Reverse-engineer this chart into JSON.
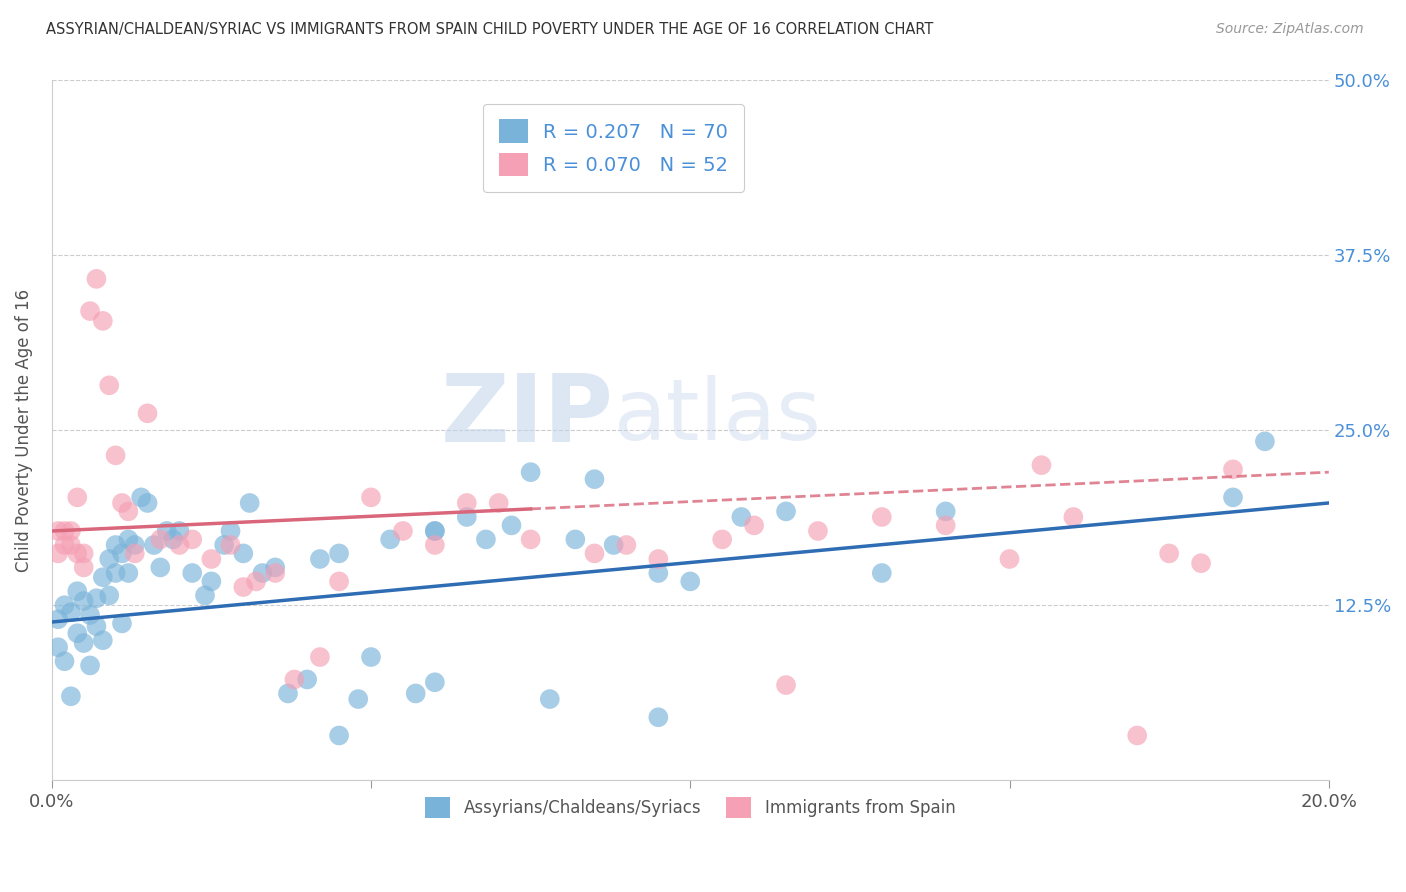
{
  "title": "ASSYRIAN/CHALDEAN/SYRIAC VS IMMIGRANTS FROM SPAIN CHILD POVERTY UNDER THE AGE OF 16 CORRELATION CHART",
  "source": "Source: ZipAtlas.com",
  "ylabel": "Child Poverty Under the Age of 16",
  "xmin": 0.0,
  "xmax": 0.2,
  "ymin": 0.0,
  "ymax": 0.5,
  "xticks": [
    0.0,
    0.05,
    0.1,
    0.15,
    0.2
  ],
  "xticklabels": [
    "0.0%",
    "",
    "",
    "",
    "20.0%"
  ],
  "yticks": [
    0.0,
    0.125,
    0.25,
    0.375,
    0.5
  ],
  "yticklabels": [
    "",
    "12.5%",
    "25.0%",
    "37.5%",
    "50.0%"
  ],
  "grid_color": "#cccccc",
  "background_color": "#ffffff",
  "blue_color": "#7ab3d9",
  "blue_line_color": "#2e6db4",
  "pink_color": "#f5a0b5",
  "pink_line_color": "#d9667a",
  "watermark_zip_color": "#c5d9ee",
  "watermark_atlas_color": "#b8cfe8",
  "legend_label1": "R = 0.207   N = 70",
  "legend_label2": "R = 0.070   N = 52",
  "bottom_label1": "Assyrians/Chaldeans/Syriacs",
  "bottom_label2": "Immigrants from Spain",
  "blue_line_x0": 0.0,
  "blue_line_y0": 0.113,
  "blue_line_x1": 0.2,
  "blue_line_y1": 0.198,
  "pink_line_x0": 0.0,
  "pink_line_y0": 0.178,
  "pink_line_x1": 0.2,
  "pink_line_y1": 0.22,
  "blue_scatter_x": [
    0.001,
    0.001,
    0.002,
    0.002,
    0.003,
    0.003,
    0.004,
    0.004,
    0.005,
    0.005,
    0.006,
    0.006,
    0.007,
    0.007,
    0.008,
    0.008,
    0.009,
    0.009,
    0.01,
    0.01,
    0.011,
    0.011,
    0.012,
    0.012,
    0.013,
    0.014,
    0.015,
    0.016,
    0.017,
    0.018,
    0.019,
    0.02,
    0.022,
    0.024,
    0.025,
    0.027,
    0.028,
    0.03,
    0.031,
    0.033,
    0.035,
    0.037,
    0.04,
    0.042,
    0.045,
    0.048,
    0.05,
    0.053,
    0.057,
    0.06,
    0.065,
    0.068,
    0.072,
    0.078,
    0.082,
    0.088,
    0.095,
    0.1,
    0.108,
    0.115,
    0.085,
    0.075,
    0.095,
    0.06,
    0.045,
    0.13,
    0.14,
    0.185,
    0.19,
    0.06
  ],
  "blue_scatter_y": [
    0.115,
    0.095,
    0.125,
    0.085,
    0.12,
    0.06,
    0.135,
    0.105,
    0.128,
    0.098,
    0.118,
    0.082,
    0.11,
    0.13,
    0.145,
    0.1,
    0.158,
    0.132,
    0.168,
    0.148,
    0.112,
    0.162,
    0.172,
    0.148,
    0.168,
    0.202,
    0.198,
    0.168,
    0.152,
    0.178,
    0.172,
    0.178,
    0.148,
    0.132,
    0.142,
    0.168,
    0.178,
    0.162,
    0.198,
    0.148,
    0.152,
    0.062,
    0.072,
    0.158,
    0.162,
    0.058,
    0.088,
    0.172,
    0.062,
    0.178,
    0.188,
    0.172,
    0.182,
    0.058,
    0.172,
    0.168,
    0.045,
    0.142,
    0.188,
    0.192,
    0.215,
    0.22,
    0.148,
    0.178,
    0.032,
    0.148,
    0.192,
    0.202,
    0.242,
    0.07
  ],
  "pink_scatter_x": [
    0.001,
    0.001,
    0.002,
    0.002,
    0.003,
    0.003,
    0.004,
    0.004,
    0.005,
    0.005,
    0.006,
    0.007,
    0.008,
    0.009,
    0.01,
    0.011,
    0.012,
    0.013,
    0.015,
    0.017,
    0.02,
    0.022,
    0.025,
    0.028,
    0.03,
    0.032,
    0.035,
    0.038,
    0.042,
    0.045,
    0.05,
    0.055,
    0.06,
    0.065,
    0.07,
    0.075,
    0.085,
    0.09,
    0.095,
    0.105,
    0.11,
    0.115,
    0.12,
    0.13,
    0.14,
    0.15,
    0.155,
    0.16,
    0.17,
    0.175,
    0.18,
    0.185
  ],
  "pink_scatter_y": [
    0.162,
    0.178,
    0.168,
    0.178,
    0.168,
    0.178,
    0.202,
    0.162,
    0.162,
    0.152,
    0.335,
    0.358,
    0.328,
    0.282,
    0.232,
    0.198,
    0.192,
    0.162,
    0.262,
    0.172,
    0.168,
    0.172,
    0.158,
    0.168,
    0.138,
    0.142,
    0.148,
    0.072,
    0.088,
    0.142,
    0.202,
    0.178,
    0.168,
    0.198,
    0.198,
    0.172,
    0.162,
    0.168,
    0.158,
    0.172,
    0.182,
    0.068,
    0.178,
    0.188,
    0.182,
    0.158,
    0.225,
    0.188,
    0.032,
    0.162,
    0.155,
    0.222
  ]
}
